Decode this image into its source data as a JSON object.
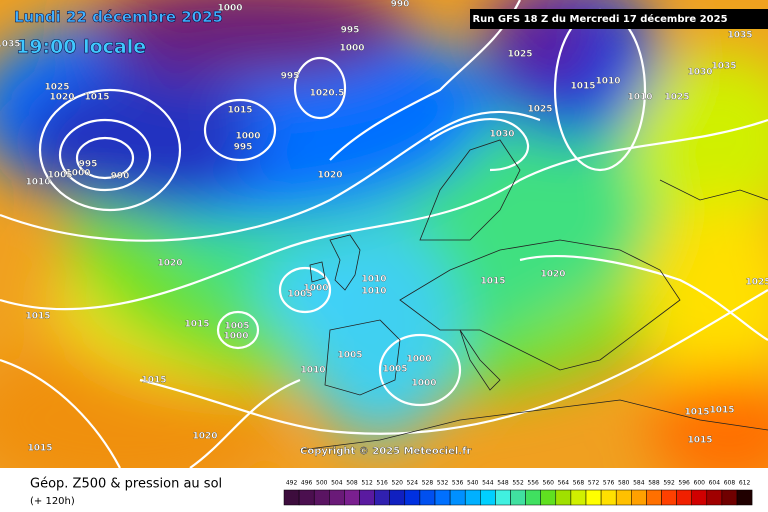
{
  "header": {
    "date": "Lundi 22 décembre 2025",
    "time": "19:00 locale",
    "run": "Run GFS 18 Z du Mercredi 17 décembre 2025"
  },
  "copyright": "Copyright © 2025 Meteociel.fr",
  "footer": {
    "title": "Géop. Z500 & pression au sol",
    "lead": "(+ 120h)"
  },
  "isobar_labels": [
    "1000",
    "990",
    "995",
    "1000",
    "1035",
    "1025",
    "1020",
    "1015",
    "1015",
    "995",
    "1000",
    "995",
    "1020.5",
    "995",
    "1000",
    "1005",
    "990",
    "1010",
    "1020",
    "1025",
    "1025",
    "1030",
    "1015",
    "1010",
    "1010",
    "1025",
    "1030",
    "1035",
    "1035",
    "1020",
    "1015",
    "1015",
    "1005",
    "1000",
    "1005",
    "1000",
    "1010",
    "1010",
    "1015",
    "1020",
    "1005",
    "1000",
    "1005",
    "1010",
    "1000",
    "1015",
    "1020",
    "1015",
    "1015",
    "1015",
    "1015",
    "1025"
  ],
  "legend": {
    "labels": [
      "492",
      "496",
      "500",
      "504",
      "508",
      "512",
      "516",
      "520",
      "524",
      "528",
      "532",
      "536",
      "540",
      "544",
      "548",
      "552",
      "556",
      "560",
      "564",
      "568",
      "572",
      "576",
      "580",
      "584",
      "588",
      "592",
      "596",
      "600",
      "604",
      "608",
      "612"
    ],
    "colors": [
      "#3d0d3d",
      "#4b0f4f",
      "#5a1462",
      "#6a1a78",
      "#7a1f8f",
      "#5a1aa0",
      "#3020b0",
      "#1020c0",
      "#0030e0",
      "#0050f0",
      "#0070ff",
      "#0090ff",
      "#00b0ff",
      "#00d0ff",
      "#40f0e0",
      "#40e0a0",
      "#40e060",
      "#60e020",
      "#a0e000",
      "#d0f000",
      "#ffff00",
      "#ffe000",
      "#ffc000",
      "#ffa000",
      "#ff7000",
      "#ff4000",
      "#f02000",
      "#d00000",
      "#a00000",
      "#700000",
      "#200000"
    ]
  }
}
